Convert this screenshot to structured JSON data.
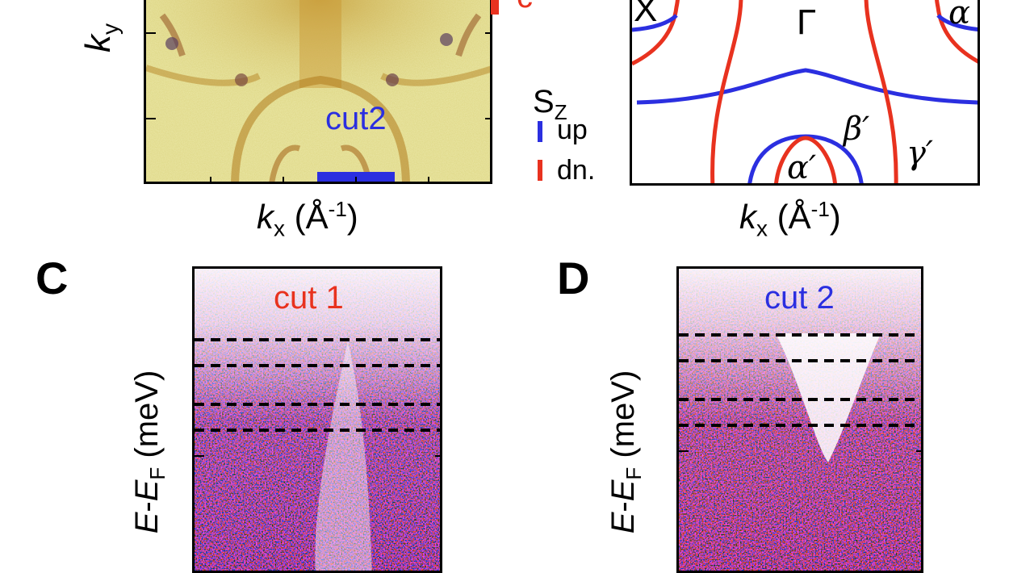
{
  "panel_a": {
    "y_axis": {
      "k": "k",
      "sub": "y"
    },
    "x_axis": {
      "k": "k",
      "sub": "x",
      "unit": "(Å",
      "exp": "-1",
      "close": ")"
    },
    "cut_label": "cut2",
    "partial_label": "c"
  },
  "panel_b": {
    "x_axis": {
      "k": "k",
      "sub": "x",
      "unit": "(Å",
      "exp": "-1",
      "close": ")"
    },
    "point_labels": {
      "gamma": "Γ",
      "x": "X"
    },
    "band_labels": {
      "alpha": "α",
      "alpha_prime": "α′",
      "beta_prime": "β′",
      "gamma_prime": "γ′"
    },
    "legend": {
      "title": "S",
      "title_sub": "Z",
      "items": [
        {
          "label": "up",
          "color": "#2b2fe0"
        },
        {
          "label": "dn.",
          "color": "#e8321f"
        }
      ]
    }
  },
  "panel_c": {
    "letter": "C",
    "cut_label": "cut 1",
    "y_axis": {
      "e": "E",
      "sep": "-",
      "ef": "E",
      "sub": "F",
      "unit": " (meV)"
    }
  },
  "panel_d": {
    "letter": "D",
    "cut_label": "cut 2",
    "y_axis": {
      "e": "E",
      "sep": "-",
      "ef": "E",
      "sub": "F",
      "unit": " (meV)"
    }
  },
  "colors": {
    "up": "#2b2fe0",
    "dn": "#e8321f",
    "map_yellow": "#e8e4a0"
  }
}
